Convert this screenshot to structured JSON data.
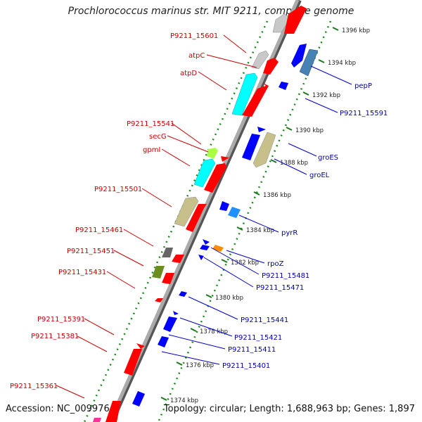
{
  "title": "Prochlorococcus marinus str. MIT 9211, complete genome",
  "accession": "Accession: NC_009976",
  "summary": "Topology: circular; Length: 1,688,963 bp; Genes: 1,897",
  "ticks": [
    {
      "label": "1396 kbp",
      "t": 0.04
    },
    {
      "label": "1394 kbp",
      "t": 0.155
    },
    {
      "label": "1392 kbp",
      "t": 0.27
    },
    {
      "label": "1390 kbp",
      "t": 0.385
    },
    {
      "label": "1388 kbp",
      "t": 0.5
    },
    {
      "label": "1386 kbp",
      "t": 0.615
    },
    {
      "label": "1384 kbp",
      "t": 0.73
    },
    {
      "label": "1382 kbp",
      "t": 0.845
    },
    {
      "label": "1380 kbp",
      "t": 0.96
    },
    {
      "label": "1378 kbp",
      "t": 1.075
    },
    {
      "label": "1376 kbp",
      "t": 1.19
    },
    {
      "label": "1374 kbp",
      "t": 1.305
    }
  ],
  "forward_genes": [
    {
      "label": "P9211_15601",
      "color": "#c8c8c8"
    },
    {
      "label": "atpC",
      "color": "#ff0000"
    },
    {
      "label": "atpD",
      "color": "#00ffff"
    },
    {
      "label": "P9211_15541",
      "color": "#ff0000"
    },
    {
      "label": "secG",
      "color": "#aaff44"
    },
    {
      "label": "gpmI",
      "color": "#ff0000"
    },
    {
      "label": "P9211_15501",
      "color": "#c8c08a"
    },
    {
      "label": "P9211_15461",
      "color": "#666666"
    },
    {
      "label": "P9211_15451",
      "color": "#ff0000"
    },
    {
      "label": "P9211_15431",
      "color": "#6b8e23"
    },
    {
      "label": "P9211_15391",
      "color": "#ff0000"
    },
    {
      "label": "P9211_15381",
      "color": "#ff0000"
    },
    {
      "label": "P9211_15361",
      "color": "#ff0000"
    }
  ],
  "reverse_genes": [
    {
      "label": "pepP",
      "color": "#4682b4"
    },
    {
      "label": "P9211_15591",
      "color": "#0000ff"
    },
    {
      "label": "groES",
      "color": "#0000ff"
    },
    {
      "label": "groEL",
      "color": "#c8c08a"
    },
    {
      "label": "pyrR",
      "color": "#1e90ff"
    },
    {
      "label": "rpoZ",
      "color": "#ff8c00"
    },
    {
      "label": "P9211_15481",
      "color": "#0000ff"
    },
    {
      "label": "P9211_15471",
      "color": "#0000ff"
    },
    {
      "label": "P9211_15441",
      "color": "#0000ff"
    },
    {
      "label": "P9211_15421",
      "color": "#0000ff"
    },
    {
      "label": "P9211_15411",
      "color": "#0000ff"
    },
    {
      "label": "P9211_15401",
      "color": "#0000ff"
    }
  ]
}
